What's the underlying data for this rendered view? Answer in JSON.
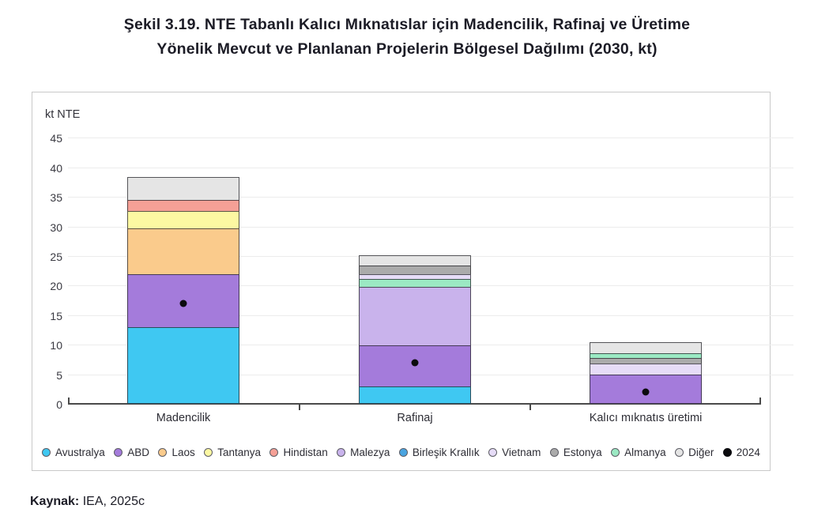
{
  "title": {
    "line1": "Şekil 3.19. NTE Tabanlı Kalıcı Mıknatıslar için Madencilik, Rafinaj ve Üretime",
    "line2": "Yönelik Mevcut ve Planlanan Projelerin Bölgesel Dağılımı (2030, kt)"
  },
  "source": {
    "label": "Kaynak:",
    "text": " IEA, 2025c"
  },
  "chart_data": {
    "type": "bar",
    "stacked": true,
    "title": "Şekil 3.19. NTE Tabanlı Kalıcı Mıknatıslar için Madencilik, Rafinaj ve Üretime Yönelik Mevcut ve Planlanan Projelerin Bölgesel Dağılımı (2030, kt)",
    "ylabel": "kt NTE",
    "ylim": [
      0,
      45
    ],
    "ytick_step": 5,
    "grid": true,
    "legend_position": "bottom",
    "categories": [
      "Madencilik",
      "Rafinaj",
      "Kalıcı mıknatıs üretimi"
    ],
    "legend": [
      "Avustralya",
      "ABD",
      "Laos",
      "Tantanya",
      "Hindistan",
      "Malezya",
      "Birleşik Krallık",
      "Vietnam",
      "Estonya",
      "Almanya",
      "Diğer",
      "2024"
    ],
    "colors": {
      "Avustralya": "#3fc8f2",
      "ABD": "#a47bdb",
      "Laos": "#facb8c",
      "Tantanya": "#fcf8a2",
      "Hindistan": "#f5a096",
      "Malezya": "#c9b3ec",
      "Birleşik Krallık": "#4aa4e0",
      "Vietnam": "#e6dcf7",
      "Estonya": "#ababab",
      "Almanya": "#9be9c3",
      "Diğer": "#e5e5e5",
      "2024": "#0b0b0e"
    },
    "bars": [
      {
        "category": "Madencilik",
        "total": 39,
        "dot_2024": 17,
        "segments": [
          {
            "name": "Avustralya",
            "value": 13
          },
          {
            "name": "ABD",
            "value": 9
          },
          {
            "name": "Laos",
            "value": 8
          },
          {
            "name": "Tantanya",
            "value": 3
          },
          {
            "name": "Hindistan",
            "value": 2
          },
          {
            "name": "Diğer",
            "value": 4
          }
        ]
      },
      {
        "category": "Rafinaj",
        "total": 26,
        "dot_2024": 7,
        "segments": [
          {
            "name": "Avustralya",
            "value": 3
          },
          {
            "name": "ABD",
            "value": 7
          },
          {
            "name": "Malezya",
            "value": 10
          },
          {
            "name": "Almanya",
            "value": 1.5
          },
          {
            "name": "Vietnam",
            "value": 1
          },
          {
            "name": "Estonya",
            "value": 1.5
          },
          {
            "name": "Diğer",
            "value": 2
          }
        ]
      },
      {
        "category": "Kalıcı mıknatıs üretimi",
        "total": 11,
        "dot_2024": 2,
        "segments": [
          {
            "name": "ABD",
            "value": 5
          },
          {
            "name": "Vietnam",
            "value": 2
          },
          {
            "name": "Estonya",
            "value": 1
          },
          {
            "name": "Almanya",
            "value": 1
          },
          {
            "name": "Diğer",
            "value": 2
          }
        ]
      }
    ],
    "dot_series": {
      "name": "2024",
      "values": [
        17,
        7,
        2
      ]
    }
  }
}
